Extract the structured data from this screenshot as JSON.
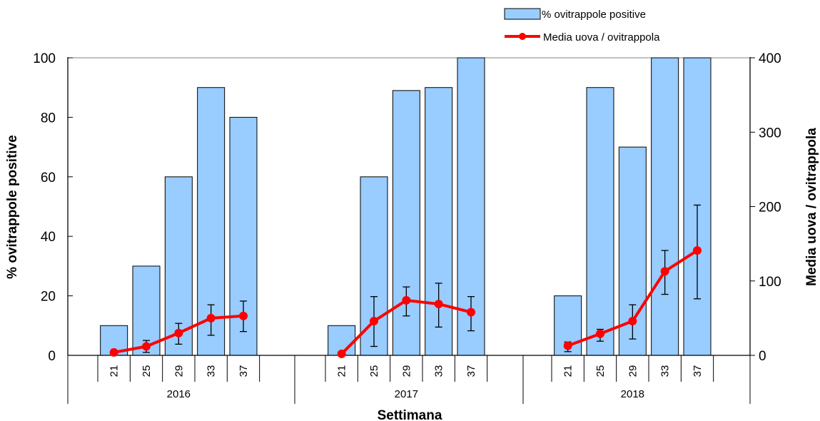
{
  "chart_data": {
    "type": "bar",
    "xlabel": "Settimana",
    "ylabel": "% ovitrappole positive",
    "y2label": "Media uova / ovitrappola",
    "ylim": [
      0,
      100
    ],
    "y2lim": [
      0,
      400
    ],
    "yticks": [
      "0",
      "20",
      "40",
      "60",
      "80",
      "100"
    ],
    "y2ticks": [
      "0",
      "100",
      "200",
      "300",
      "400"
    ],
    "legend_position": "top-right",
    "groups": [
      {
        "label": "2016",
        "categories": [
          "21",
          "25",
          "29",
          "33",
          "37"
        ],
        "bar_values": [
          10,
          30,
          60,
          90,
          80
        ],
        "line_values": [
          4,
          12,
          30,
          50,
          53
        ],
        "err_low": [
          3,
          4,
          15,
          27,
          32
        ],
        "err_high": [
          5,
          20,
          43,
          68,
          73
        ]
      },
      {
        "label": "2017",
        "categories": [
          "21",
          "25",
          "29",
          "33",
          "37"
        ],
        "bar_values": [
          10,
          60,
          89,
          90,
          100
        ],
        "line_values": [
          2,
          46,
          74,
          69,
          58
        ],
        "err_low": [
          1,
          12,
          53,
          38,
          33
        ],
        "err_high": [
          3,
          79,
          92,
          97,
          79
        ]
      },
      {
        "label": "2018",
        "categories": [
          "21",
          "25",
          "29",
          "33",
          "37"
        ],
        "bar_values": [
          20,
          90,
          70,
          100,
          100
        ],
        "line_values": [
          13,
          29,
          46,
          113,
          141
        ],
        "err_low": [
          5,
          19,
          22,
          82,
          76
        ],
        "err_high": [
          18,
          35,
          68,
          141,
          202
        ]
      }
    ],
    "series": [
      {
        "name": "% ovitrappole positive",
        "type": "bar",
        "axis": "left",
        "color": "#99CCFF"
      },
      {
        "name": "Media uova / ovitrappola",
        "type": "line",
        "axis": "right",
        "color": "#FF0000"
      }
    ]
  }
}
